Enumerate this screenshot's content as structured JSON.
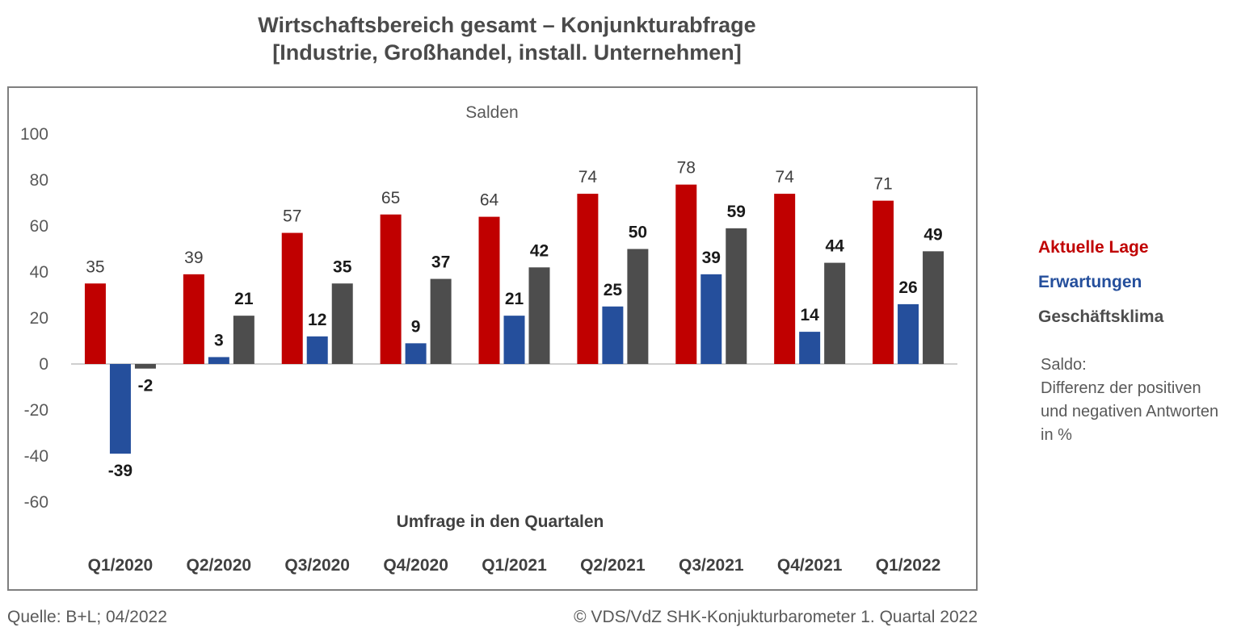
{
  "title": {
    "line1": "Wirtschaftsbereich gesamt – Konjunkturabfrage",
    "line2": "[Industrie, Großhandel, install. Unternehmen]"
  },
  "chart_data": {
    "type": "bar",
    "title": "Wirtschaftsbereich gesamt – Konjunkturabfrage [Industrie, Großhandel, install. Unternehmen]",
    "subtitle": "Salden",
    "xlabel": "Umfrage in den Quartalen",
    "ylabel": "",
    "ylim": [
      -60,
      100
    ],
    "yticks": [
      100,
      80,
      60,
      40,
      20,
      0,
      -20,
      -40,
      -60
    ],
    "ytick_labels": [
      "100",
      "80",
      "60",
      "40",
      "20",
      "0",
      "-20",
      "-40",
      "-60"
    ],
    "categories": [
      "Q1/2020",
      "Q2/2020",
      "Q3/2020",
      "Q4/2020",
      "Q1/2021",
      "Q2/2021",
      "Q3/2021",
      "Q4/2021",
      "Q1/2022"
    ],
    "series": [
      {
        "name": "Aktuelle Lage",
        "color": "#c00000",
        "label_bold": false,
        "values": [
          35,
          39,
          57,
          65,
          64,
          74,
          78,
          74,
          71
        ],
        "labels": [
          "35",
          "39",
          "57",
          "65",
          "64",
          "74",
          "78",
          "74",
          "71"
        ]
      },
      {
        "name": "Erwartungen",
        "color": "#254f9c",
        "label_bold": true,
        "values": [
          -39,
          3,
          12,
          9,
          21,
          25,
          39,
          14,
          26
        ],
        "labels": [
          "-39",
          "3",
          "12",
          "9",
          "21",
          "25",
          "39",
          "14",
          "26"
        ]
      },
      {
        "name": "Geschäftsklima",
        "color": "#4d4d4d",
        "label_bold": true,
        "values": [
          -2,
          21,
          35,
          37,
          42,
          50,
          59,
          44,
          49
        ],
        "labels": [
          "-2",
          "21",
          "35",
          "37",
          "42",
          "50",
          "59",
          "44",
          "49"
        ]
      }
    ],
    "legend_position": "right",
    "grid": false
  },
  "note": {
    "line1": "Saldo:",
    "line2": "Differenz der positiven",
    "line3": "und negativen Antworten",
    "line4": "in %"
  },
  "footer": {
    "source": "Quelle: B+L; 04/2022",
    "copyright": "© VDS/VdZ SHK-Konjukturbarometer 1. Quartal 2022"
  }
}
